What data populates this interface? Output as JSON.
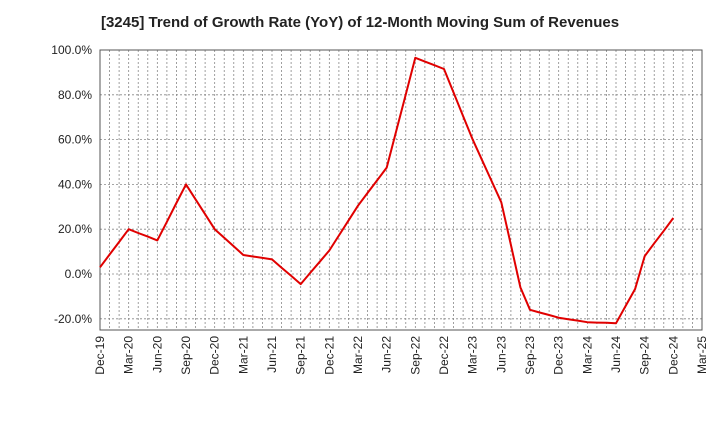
{
  "chart_data": {
    "type": "line",
    "title": "[3245]  Trend of Growth Rate (YoY) of 12-Month Moving Sum of Revenues",
    "xlabel": "",
    "ylabel": "",
    "ylim": [
      -25,
      100
    ],
    "yticks": [
      100,
      80,
      60,
      40,
      20,
      0,
      -20
    ],
    "ytick_labels": [
      "100.0%",
      "80.0%",
      "60.0%",
      "40.0%",
      "20.0%",
      "0.0%",
      "-20.0%"
    ],
    "xtick_labels": [
      "Dec-19",
      "Mar-20",
      "Jun-20",
      "Sep-20",
      "Dec-20",
      "Mar-21",
      "Jun-21",
      "Sep-21",
      "Dec-21",
      "Mar-22",
      "Jun-22",
      "Sep-22",
      "Dec-22",
      "Mar-23",
      "Jun-23",
      "Sep-23",
      "Dec-23",
      "Mar-24",
      "Jun-24",
      "Sep-24",
      "Dec-24",
      "Mar-25"
    ],
    "grid": true,
    "series": [
      {
        "color": "#e00000",
        "x": [
          "Dec-19",
          "Jan-20",
          "Feb-20",
          "Mar-20",
          "Apr-20",
          "May-20",
          "Jun-20",
          "Jul-20",
          "Aug-20",
          "Sep-20",
          "Oct-20",
          "Nov-20",
          "Dec-20",
          "Jan-21",
          "Feb-21",
          "Mar-21",
          "Apr-21",
          "May-21",
          "Jun-21",
          "Jul-21",
          "Aug-21",
          "Sep-21",
          "Oct-21",
          "Nov-21",
          "Dec-21",
          "Jan-22",
          "Feb-22",
          "Mar-22",
          "Apr-22",
          "May-22",
          "Jun-22",
          "Jul-22",
          "Aug-22",
          "Sep-22",
          "Oct-22",
          "Nov-22",
          "Dec-22",
          "Jan-23",
          "Feb-23",
          "Mar-23",
          "Apr-23",
          "May-23",
          "Jun-23",
          "Jul-23",
          "Aug-23",
          "Sep-23",
          "Oct-23",
          "Nov-23",
          "Dec-23",
          "Jan-24",
          "Feb-24",
          "Mar-24",
          "Apr-24",
          "May-24",
          "Jun-24",
          "Jul-24",
          "Aug-24",
          "Sep-24",
          "Oct-24",
          "Nov-24",
          "Dec-24"
        ],
        "values": [
          3,
          8.7,
          14.3,
          20,
          18.3,
          16.7,
          15,
          23.3,
          31.7,
          40,
          33.3,
          26.7,
          20,
          16.2,
          12.3,
          8.5,
          7.8,
          7.2,
          6.5,
          2.8,
          -0.8,
          -4.5,
          0.5,
          5.5,
          10.5,
          17.2,
          23.8,
          30.5,
          36.2,
          41.8,
          47.5,
          63.8,
          80.2,
          96.5,
          94.8,
          93.2,
          91.5,
          81,
          70.5,
          60,
          50.7,
          41.3,
          32,
          13,
          -6,
          -16,
          -17.2,
          -18.3,
          -19.5,
          -20.2,
          -20.8,
          -21.5,
          -21.7,
          -21.8,
          -22,
          -14.3,
          -6.7,
          8,
          13.7,
          19.3,
          25
        ]
      }
    ]
  }
}
